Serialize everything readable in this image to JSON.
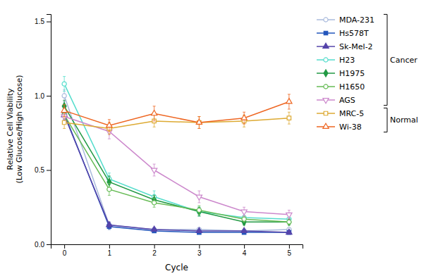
{
  "chart_data": {
    "type": "line",
    "xlabel": "Cycle",
    "ylabel": "Relative Cell Viability\n(Low Glucose/High Glucose)",
    "x": [
      0,
      1,
      2,
      3,
      4,
      5
    ],
    "xlim": [
      -0.3,
      5.3
    ],
    "xticks": [
      0,
      1,
      2,
      3,
      4,
      5
    ],
    "ylim": [
      0.0,
      1.55
    ],
    "yticks": [
      {
        "value": 0.0,
        "label": "0.0"
      },
      0.5,
      {
        "value": 1.0,
        "label": "1.0"
      },
      1.5
    ],
    "grid": false,
    "series": [
      {
        "name": "MDA-231",
        "group": "Cancer",
        "color": "#AABBDD",
        "marker": "circle-open",
        "values": [
          1.0,
          0.13,
          0.1,
          0.1,
          0.09,
          0.1
        ],
        "errors": [
          0.04,
          0.02,
          0.01,
          0.01,
          0.01,
          0.01
        ]
      },
      {
        "name": "Hs578T",
        "group": "Cancer",
        "color": "#2255BB",
        "marker": "square",
        "values": [
          0.88,
          0.12,
          0.09,
          0.08,
          0.08,
          0.08
        ],
        "errors": [
          0.04,
          0.02,
          0.01,
          0.01,
          0.01,
          0.01
        ]
      },
      {
        "name": "Sk-Mel-2",
        "group": "Cancer",
        "color": "#5544AA",
        "marker": "triangle-up",
        "values": [
          0.87,
          0.13,
          0.1,
          0.09,
          0.09,
          0.08
        ],
        "errors": [
          0.04,
          0.02,
          0.01,
          0.01,
          0.01,
          0.01
        ]
      },
      {
        "name": "H23",
        "group": "Cancer",
        "color": "#55DDCC",
        "marker": "circle-open",
        "values": [
          1.08,
          0.44,
          0.32,
          0.22,
          0.18,
          0.17
        ],
        "errors": [
          0.05,
          0.04,
          0.04,
          0.03,
          0.03,
          0.03
        ]
      },
      {
        "name": "H1975",
        "group": "Cancer",
        "color": "#229944",
        "marker": "diamond",
        "values": [
          0.93,
          0.42,
          0.3,
          0.22,
          0.15,
          0.15
        ],
        "errors": [
          0.04,
          0.04,
          0.03,
          0.03,
          0.02,
          0.02
        ]
      },
      {
        "name": "H1650",
        "group": "Cancer",
        "color": "#66BB55",
        "marker": "circle-open",
        "values": [
          0.87,
          0.37,
          0.28,
          0.23,
          0.17,
          0.15
        ],
        "errors": [
          0.04,
          0.04,
          0.03,
          0.03,
          0.02,
          0.02
        ]
      },
      {
        "name": "AGS",
        "group": "Cancer",
        "color": "#CC88CC",
        "marker": "triangle-down-open",
        "values": [
          0.86,
          0.76,
          0.5,
          0.32,
          0.22,
          0.2
        ],
        "errors": [
          0.04,
          0.05,
          0.04,
          0.04,
          0.03,
          0.03
        ]
      },
      {
        "name": "MRC-5",
        "group": "Normal",
        "color": "#DDAA33",
        "marker": "square-open",
        "values": [
          0.82,
          0.78,
          0.83,
          0.82,
          0.83,
          0.85
        ],
        "errors": [
          0.04,
          0.04,
          0.04,
          0.04,
          0.04,
          0.04
        ]
      },
      {
        "name": "Wi-38",
        "group": "Normal",
        "color": "#EE6622",
        "marker": "triangle-up-open",
        "values": [
          0.9,
          0.8,
          0.88,
          0.82,
          0.85,
          0.96
        ],
        "errors": [
          0.04,
          0.04,
          0.05,
          0.04,
          0.04,
          0.05
        ]
      }
    ]
  }
}
